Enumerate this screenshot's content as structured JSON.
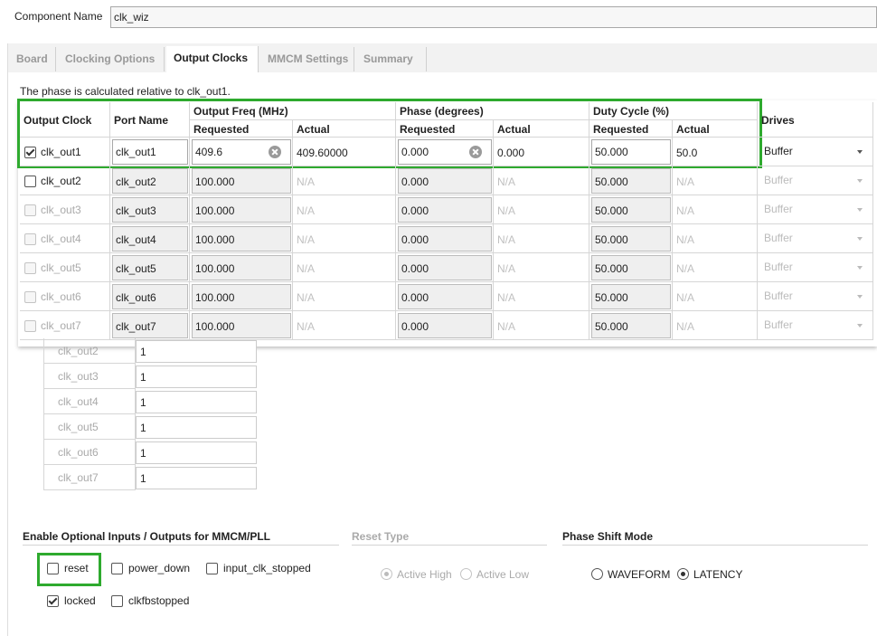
{
  "component": {
    "label": "Component Name",
    "value": "clk_wiz"
  },
  "tabs": {
    "items": [
      "Board",
      "Clocking Options",
      "Output Clocks",
      "MMCM Settings",
      "Summary"
    ],
    "active": 2
  },
  "note": "The phase is calculated relative to clk_out1.",
  "table": {
    "headers": {
      "output_clock": "Output Clock",
      "port_name": "Port Name",
      "freq": {
        "title": "Output Freq (MHz)",
        "requested": "Requested",
        "actual": "Actual"
      },
      "phase": {
        "title": "Phase (degrees)",
        "requested": "Requested",
        "actual": "Actual"
      },
      "duty": {
        "title": "Duty Cycle (%)",
        "requested": "Requested",
        "actual": "Actual"
      },
      "drives": "Drives"
    },
    "rows": [
      {
        "name": "clk_out1",
        "checked": true,
        "selectable": true,
        "active": true,
        "port": "clk_out1",
        "freq": "409.6",
        "freq_actual": "409.60000",
        "phase": "0.000",
        "phase_actual": "0.000",
        "duty": "50.000",
        "duty_actual": "50.0",
        "drives": "Buffer"
      },
      {
        "name": "clk_out2",
        "checked": false,
        "selectable": true,
        "active": false,
        "port": "clk_out2",
        "freq": "100.000",
        "freq_actual": "N/A",
        "phase": "0.000",
        "phase_actual": "N/A",
        "duty": "50.000",
        "duty_actual": "N/A",
        "drives": "Buffer"
      },
      {
        "name": "clk_out3",
        "checked": false,
        "selectable": false,
        "active": false,
        "port": "clk_out3",
        "freq": "100.000",
        "freq_actual": "N/A",
        "phase": "0.000",
        "phase_actual": "N/A",
        "duty": "50.000",
        "duty_actual": "N/A",
        "drives": "Buffer"
      },
      {
        "name": "clk_out4",
        "checked": false,
        "selectable": false,
        "active": false,
        "port": "clk_out4",
        "freq": "100.000",
        "freq_actual": "N/A",
        "phase": "0.000",
        "phase_actual": "N/A",
        "duty": "50.000",
        "duty_actual": "N/A",
        "drives": "Buffer"
      },
      {
        "name": "clk_out5",
        "checked": false,
        "selectable": false,
        "active": false,
        "port": "clk_out5",
        "freq": "100.000",
        "freq_actual": "N/A",
        "phase": "0.000",
        "phase_actual": "N/A",
        "duty": "50.000",
        "duty_actual": "N/A",
        "drives": "Buffer"
      },
      {
        "name": "clk_out6",
        "checked": false,
        "selectable": false,
        "active": false,
        "port": "clk_out6",
        "freq": "100.000",
        "freq_actual": "N/A",
        "phase": "0.000",
        "phase_actual": "N/A",
        "duty": "50.000",
        "duty_actual": "N/A",
        "drives": "Buffer"
      },
      {
        "name": "clk_out7",
        "checked": false,
        "selectable": false,
        "active": false,
        "port": "clk_out7",
        "freq": "100.000",
        "freq_actual": "N/A",
        "phase": "0.000",
        "phase_actual": "N/A",
        "duty": "50.000",
        "duty_actual": "N/A",
        "drives": "Buffer"
      }
    ]
  },
  "counters": {
    "rows": [
      {
        "name": "clk_out2",
        "value": "1"
      },
      {
        "name": "clk_out3",
        "value": "1"
      },
      {
        "name": "clk_out4",
        "value": "1"
      },
      {
        "name": "clk_out5",
        "value": "1"
      },
      {
        "name": "clk_out6",
        "value": "1"
      },
      {
        "name": "clk_out7",
        "value": "1"
      }
    ]
  },
  "optional": {
    "title": "Enable Optional Inputs / Outputs for MMCM/PLL",
    "items": [
      {
        "label": "reset",
        "checked": false
      },
      {
        "label": "power_down",
        "checked": false
      },
      {
        "label": "input_clk_stopped",
        "checked": false
      },
      {
        "label": "locked",
        "checked": true
      },
      {
        "label": "clkfbstopped",
        "checked": false
      }
    ]
  },
  "reset_type": {
    "title": "Reset Type",
    "enabled": false,
    "options": [
      {
        "label": "Active High",
        "selected": true
      },
      {
        "label": "Active Low",
        "selected": false
      }
    ]
  },
  "phase_shift": {
    "title": "Phase Shift Mode",
    "enabled": true,
    "options": [
      {
        "label": "WAVEFORM",
        "selected": false
      },
      {
        "label": "LATENCY",
        "selected": true
      }
    ]
  }
}
